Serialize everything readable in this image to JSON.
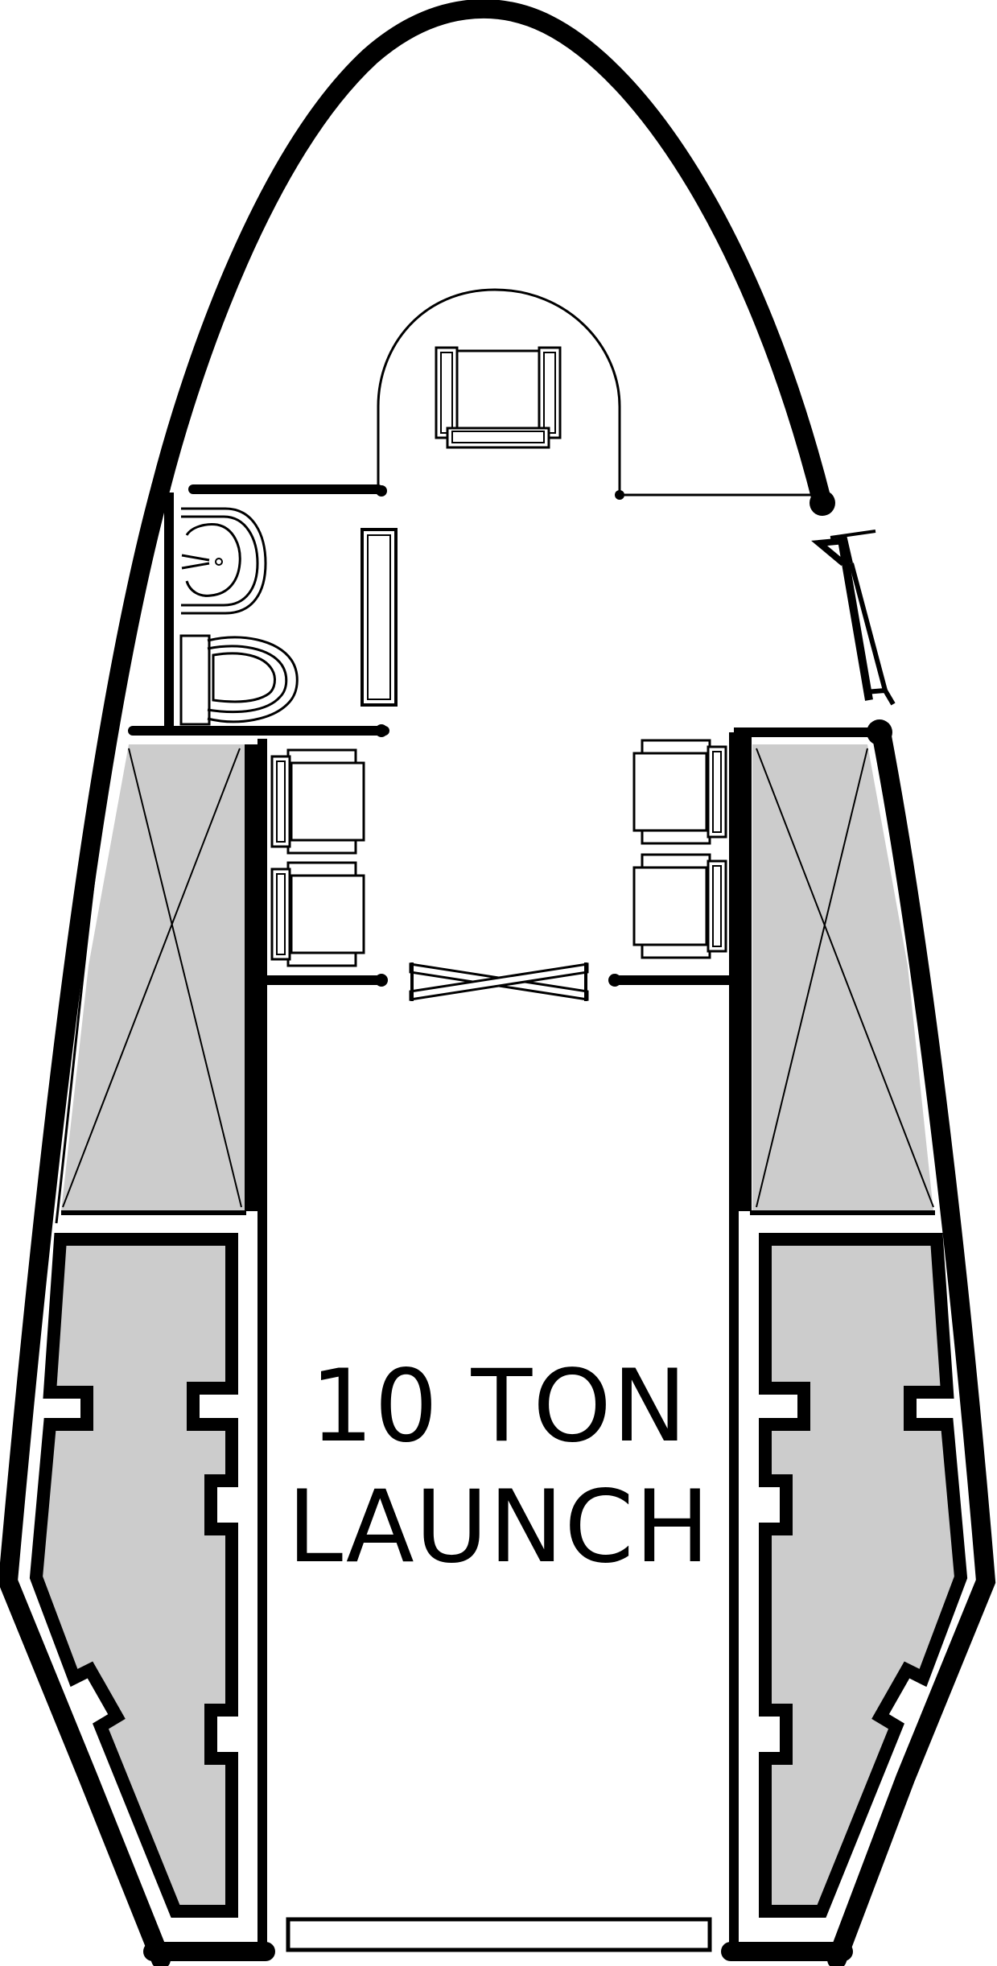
{
  "diagram": {
    "label_line1": "10 TON",
    "label_line2": "LAUNCH"
  },
  "colors": {
    "wall": "#000000",
    "fill_gray": "#cccccc",
    "background": "#ffffff"
  },
  "elements": [
    "hull-outline",
    "cockpit-pilot-seat",
    "washroom-sink",
    "washroom-toilet",
    "passenger-seats",
    "cargo-bays",
    "engine-pods",
    "airlock-doors",
    "rear-ramp"
  ]
}
